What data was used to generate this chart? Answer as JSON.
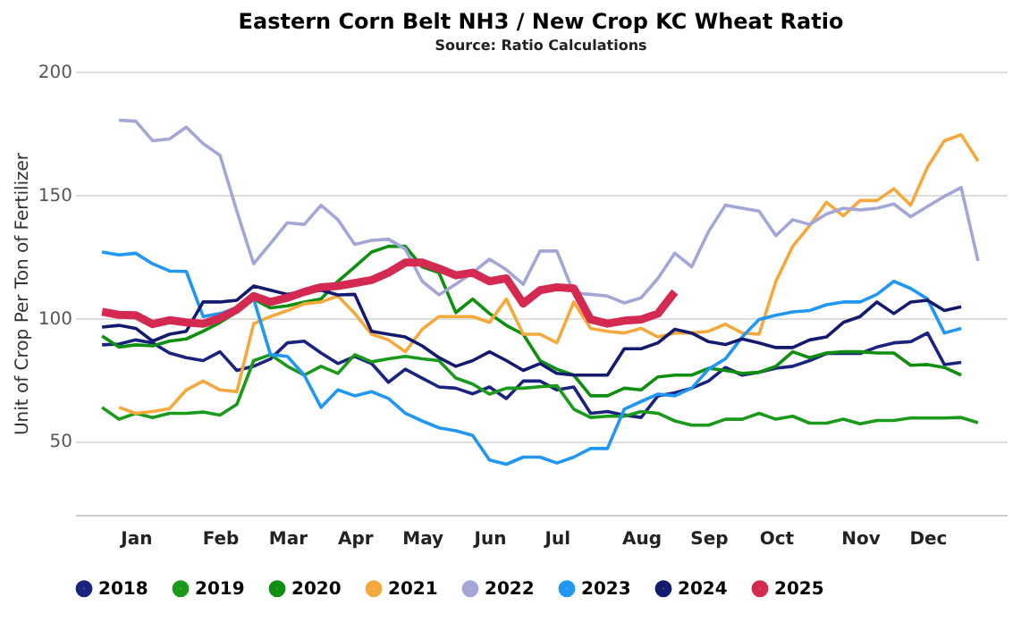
{
  "chart_data": {
    "type": "line",
    "title": "Eastern Corn Belt NH3 / New Crop KC Wheat Ratio",
    "subtitle": "Source: Ratio Calculations",
    "ylabel": "Unit of Crop Per Ton of Fertilizer",
    "categories": [
      null,
      null,
      "Jan",
      null,
      null,
      null,
      null,
      "Feb",
      null,
      null,
      null,
      "Mar",
      null,
      null,
      null,
      "Apr",
      null,
      null,
      null,
      "May",
      null,
      null,
      null,
      "Jun",
      null,
      null,
      null,
      "Jul",
      null,
      null,
      null,
      null,
      "Aug",
      null,
      null,
      null,
      "Sep",
      null,
      null,
      null,
      "Oct",
      null,
      null,
      null,
      null,
      "Nov",
      null,
      null,
      null,
      "Dec",
      null,
      null,
      null
    ],
    "ylim": [
      20,
      200
    ],
    "yticks": [
      50,
      100,
      150,
      200
    ],
    "grid": "y",
    "legend": "bottom",
    "marker": "none",
    "line_style": "solid",
    "series": [
      {
        "name": "2018",
        "color": "#1a237e",
        "values": [
          89,
          89.3,
          91,
          89.8,
          85.7,
          83.8,
          82.6,
          86.2,
          78.6,
          80.3,
          83.3,
          89.8,
          90.5,
          85.7,
          81.4,
          84.3,
          81.4,
          73.8,
          79.1,
          75.5,
          71.9,
          71.4,
          69.1,
          71.9,
          67.2,
          74.3,
          74.3,
          70.7,
          71.9,
          61.2,
          61.9,
          60.5,
          59.5,
          68.3,
          69.5,
          71.4,
          74.3,
          79.8,
          76.7,
          77.9,
          79.5,
          80.3,
          82.6,
          85.5,
          85.5,
          85.5,
          88.1,
          89.8,
          90.3,
          93.8,
          81,
          81.9,
          null
        ]
      },
      {
        "name": "2019",
        "color": "#1a9a1a",
        "values": [
          63.6,
          58.8,
          61.2,
          59.5,
          61.2,
          61.2,
          61.7,
          60.5,
          64.8,
          82.6,
          85,
          80.3,
          76.7,
          80.3,
          77.4,
          85,
          82.1,
          83.3,
          84.3,
          83.3,
          82.6,
          75.5,
          73.1,
          69,
          71.4,
          71.4,
          72,
          72.4,
          62.9,
          59.5,
          60,
          60,
          61.9,
          61.2,
          58.1,
          56.4,
          56.4,
          58.8,
          58.8,
          61.2,
          58.8,
          60,
          57.2,
          57.2,
          58.8,
          56.9,
          58.3,
          58.3,
          59.3,
          59.3,
          59.3,
          59.5,
          57.4
        ]
      },
      {
        "name": "2020",
        "color": "#0f8f0f",
        "values": [
          92.6,
          88.1,
          89,
          88.6,
          90.5,
          91.4,
          94.5,
          98.1,
          102.4,
          107.6,
          104,
          104.8,
          106.4,
          107.6,
          114.8,
          120.7,
          126.7,
          129,
          129,
          120.7,
          118.3,
          102.1,
          107.6,
          101.7,
          96.9,
          93.3,
          82.6,
          79.1,
          76.7,
          68.3,
          68.3,
          71.4,
          70.7,
          76,
          76.7,
          76.7,
          79.5,
          78.6,
          77.4,
          77.9,
          80.3,
          86.2,
          83.8,
          85.7,
          86.2,
          86.2,
          85.7,
          85.7,
          80.7,
          81,
          79.8,
          76.7,
          null
        ]
      },
      {
        "name": "2021",
        "color": "#f5a93c",
        "values": [
          null,
          63.6,
          61.2,
          61.9,
          63.1,
          70.7,
          74.3,
          70.7,
          70,
          97.6,
          100.5,
          102.9,
          105.7,
          106.4,
          108.8,
          101.7,
          93.3,
          91,
          86.2,
          95.3,
          100.5,
          100.5,
          100.5,
          98.1,
          107.6,
          93.3,
          93.3,
          89.8,
          106.4,
          95.7,
          94.5,
          93.8,
          95.7,
          92.2,
          93.8,
          93.8,
          94.5,
          97.4,
          93.8,
          93.3,
          114.8,
          129,
          137.4,
          146.9,
          141.4,
          147.6,
          147.6,
          152.4,
          145.7,
          161.2,
          171.9,
          174.3,
          163.6
        ]
      },
      {
        "name": "2022",
        "color": "#a3a6d6",
        "values": [
          null,
          180.2,
          179.8,
          171.9,
          172.6,
          177.4,
          170.7,
          166,
          143.3,
          121.9,
          130.2,
          138.6,
          137.9,
          145.7,
          139.8,
          129.8,
          131.4,
          131.9,
          127.9,
          114.8,
          109.3,
          113.6,
          118.3,
          123.8,
          119.5,
          113.6,
          127.1,
          127.1,
          110,
          109.5,
          108.8,
          106,
          108.1,
          116,
          126.2,
          120.7,
          135,
          145.7,
          144.5,
          143.3,
          133.3,
          139.8,
          137.9,
          142.1,
          144.5,
          143.8,
          144.5,
          146.2,
          141,
          145.2,
          149.3,
          152.9,
          123.1
        ]
      },
      {
        "name": "2023",
        "color": "#2196f3",
        "values": [
          126.7,
          125.5,
          126.2,
          121.9,
          119,
          118.8,
          100.5,
          101.7,
          104,
          107.6,
          85,
          84.3,
          76.7,
          63.6,
          70.7,
          68.3,
          70,
          67.2,
          61.2,
          58.1,
          55.3,
          54.1,
          52.2,
          42.2,
          40.5,
          43.4,
          43.4,
          41,
          43.4,
          46.9,
          46.9,
          62.9,
          66,
          69,
          68.3,
          71.4,
          79.1,
          83.3,
          92.2,
          99.3,
          101,
          102.4,
          102.9,
          105.3,
          106.4,
          106.4,
          109.5,
          114.8,
          111.9,
          107.6,
          93.8,
          95.7,
          null
        ]
      },
      {
        "name": "2024",
        "color": "#141a6e",
        "values": [
          96.2,
          96.9,
          95.7,
          90.5,
          93.3,
          94.5,
          106.4,
          106.4,
          107.1,
          112.9,
          111.2,
          109.5,
          110.5,
          111.2,
          109.3,
          109.5,
          94.5,
          93.3,
          92.2,
          88.6,
          83.8,
          80.3,
          82.6,
          86.2,
          82.6,
          78.6,
          81.4,
          77.4,
          76.7,
          76.7,
          76.7,
          87.4,
          87.4,
          89.8,
          95.3,
          93.8,
          90.3,
          89.1,
          91.4,
          89.8,
          87.9,
          87.9,
          91,
          92.2,
          98.1,
          100.5,
          106.4,
          101.7,
          106.4,
          107.1,
          102.9,
          104.5,
          null
        ]
      },
      {
        "name": "2025",
        "color": "#d42a52",
        "values": [
          102.4,
          101.2,
          101,
          97.4,
          99,
          98.1,
          97.6,
          99.8,
          103.3,
          108.8,
          106.4,
          108.1,
          110.5,
          112.4,
          112.9,
          114.1,
          115.3,
          118.3,
          122.4,
          122.4,
          120,
          117.2,
          118.3,
          114.8,
          116,
          105.7,
          111.2,
          112.4,
          111.9,
          99.3,
          97.6,
          98.8,
          99.3,
          101.7,
          110.5,
          null,
          null,
          null,
          null,
          null,
          null,
          null,
          null,
          null,
          null,
          null,
          null,
          null,
          null,
          null,
          null,
          null,
          null
        ]
      }
    ]
  }
}
